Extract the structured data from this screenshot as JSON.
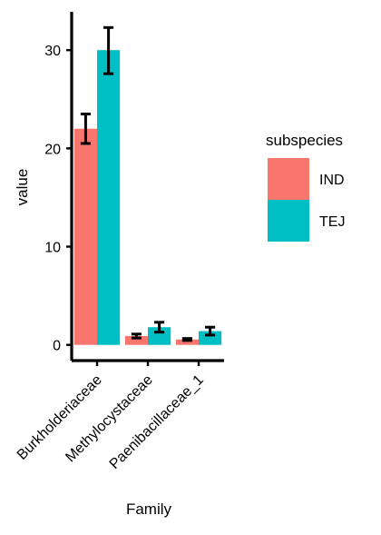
{
  "chart_data": {
    "type": "bar",
    "categories": [
      "Burkholderiaceae",
      "Methylocystaceae",
      "Paenibacillaceae_1"
    ],
    "series": [
      {
        "name": "IND",
        "color": "#F8766D",
        "values": [
          22.0,
          0.9,
          0.55
        ],
        "error_low": [
          20.5,
          0.7,
          0.45
        ],
        "error_high": [
          23.5,
          1.1,
          0.65
        ]
      },
      {
        "name": "TEJ",
        "color": "#00BFC4",
        "values": [
          30.0,
          1.8,
          1.4
        ],
        "error_low": [
          27.6,
          1.3,
          1.0
        ],
        "error_high": [
          32.3,
          2.3,
          1.8
        ]
      }
    ],
    "xlabel": "Family",
    "ylabel": "value",
    "y_ticks": [
      0,
      10,
      20,
      30
    ],
    "ylim": [
      -1.6,
      33.9
    ],
    "legend_title": "subspecies",
    "legend_position": "right",
    "grid": false
  }
}
